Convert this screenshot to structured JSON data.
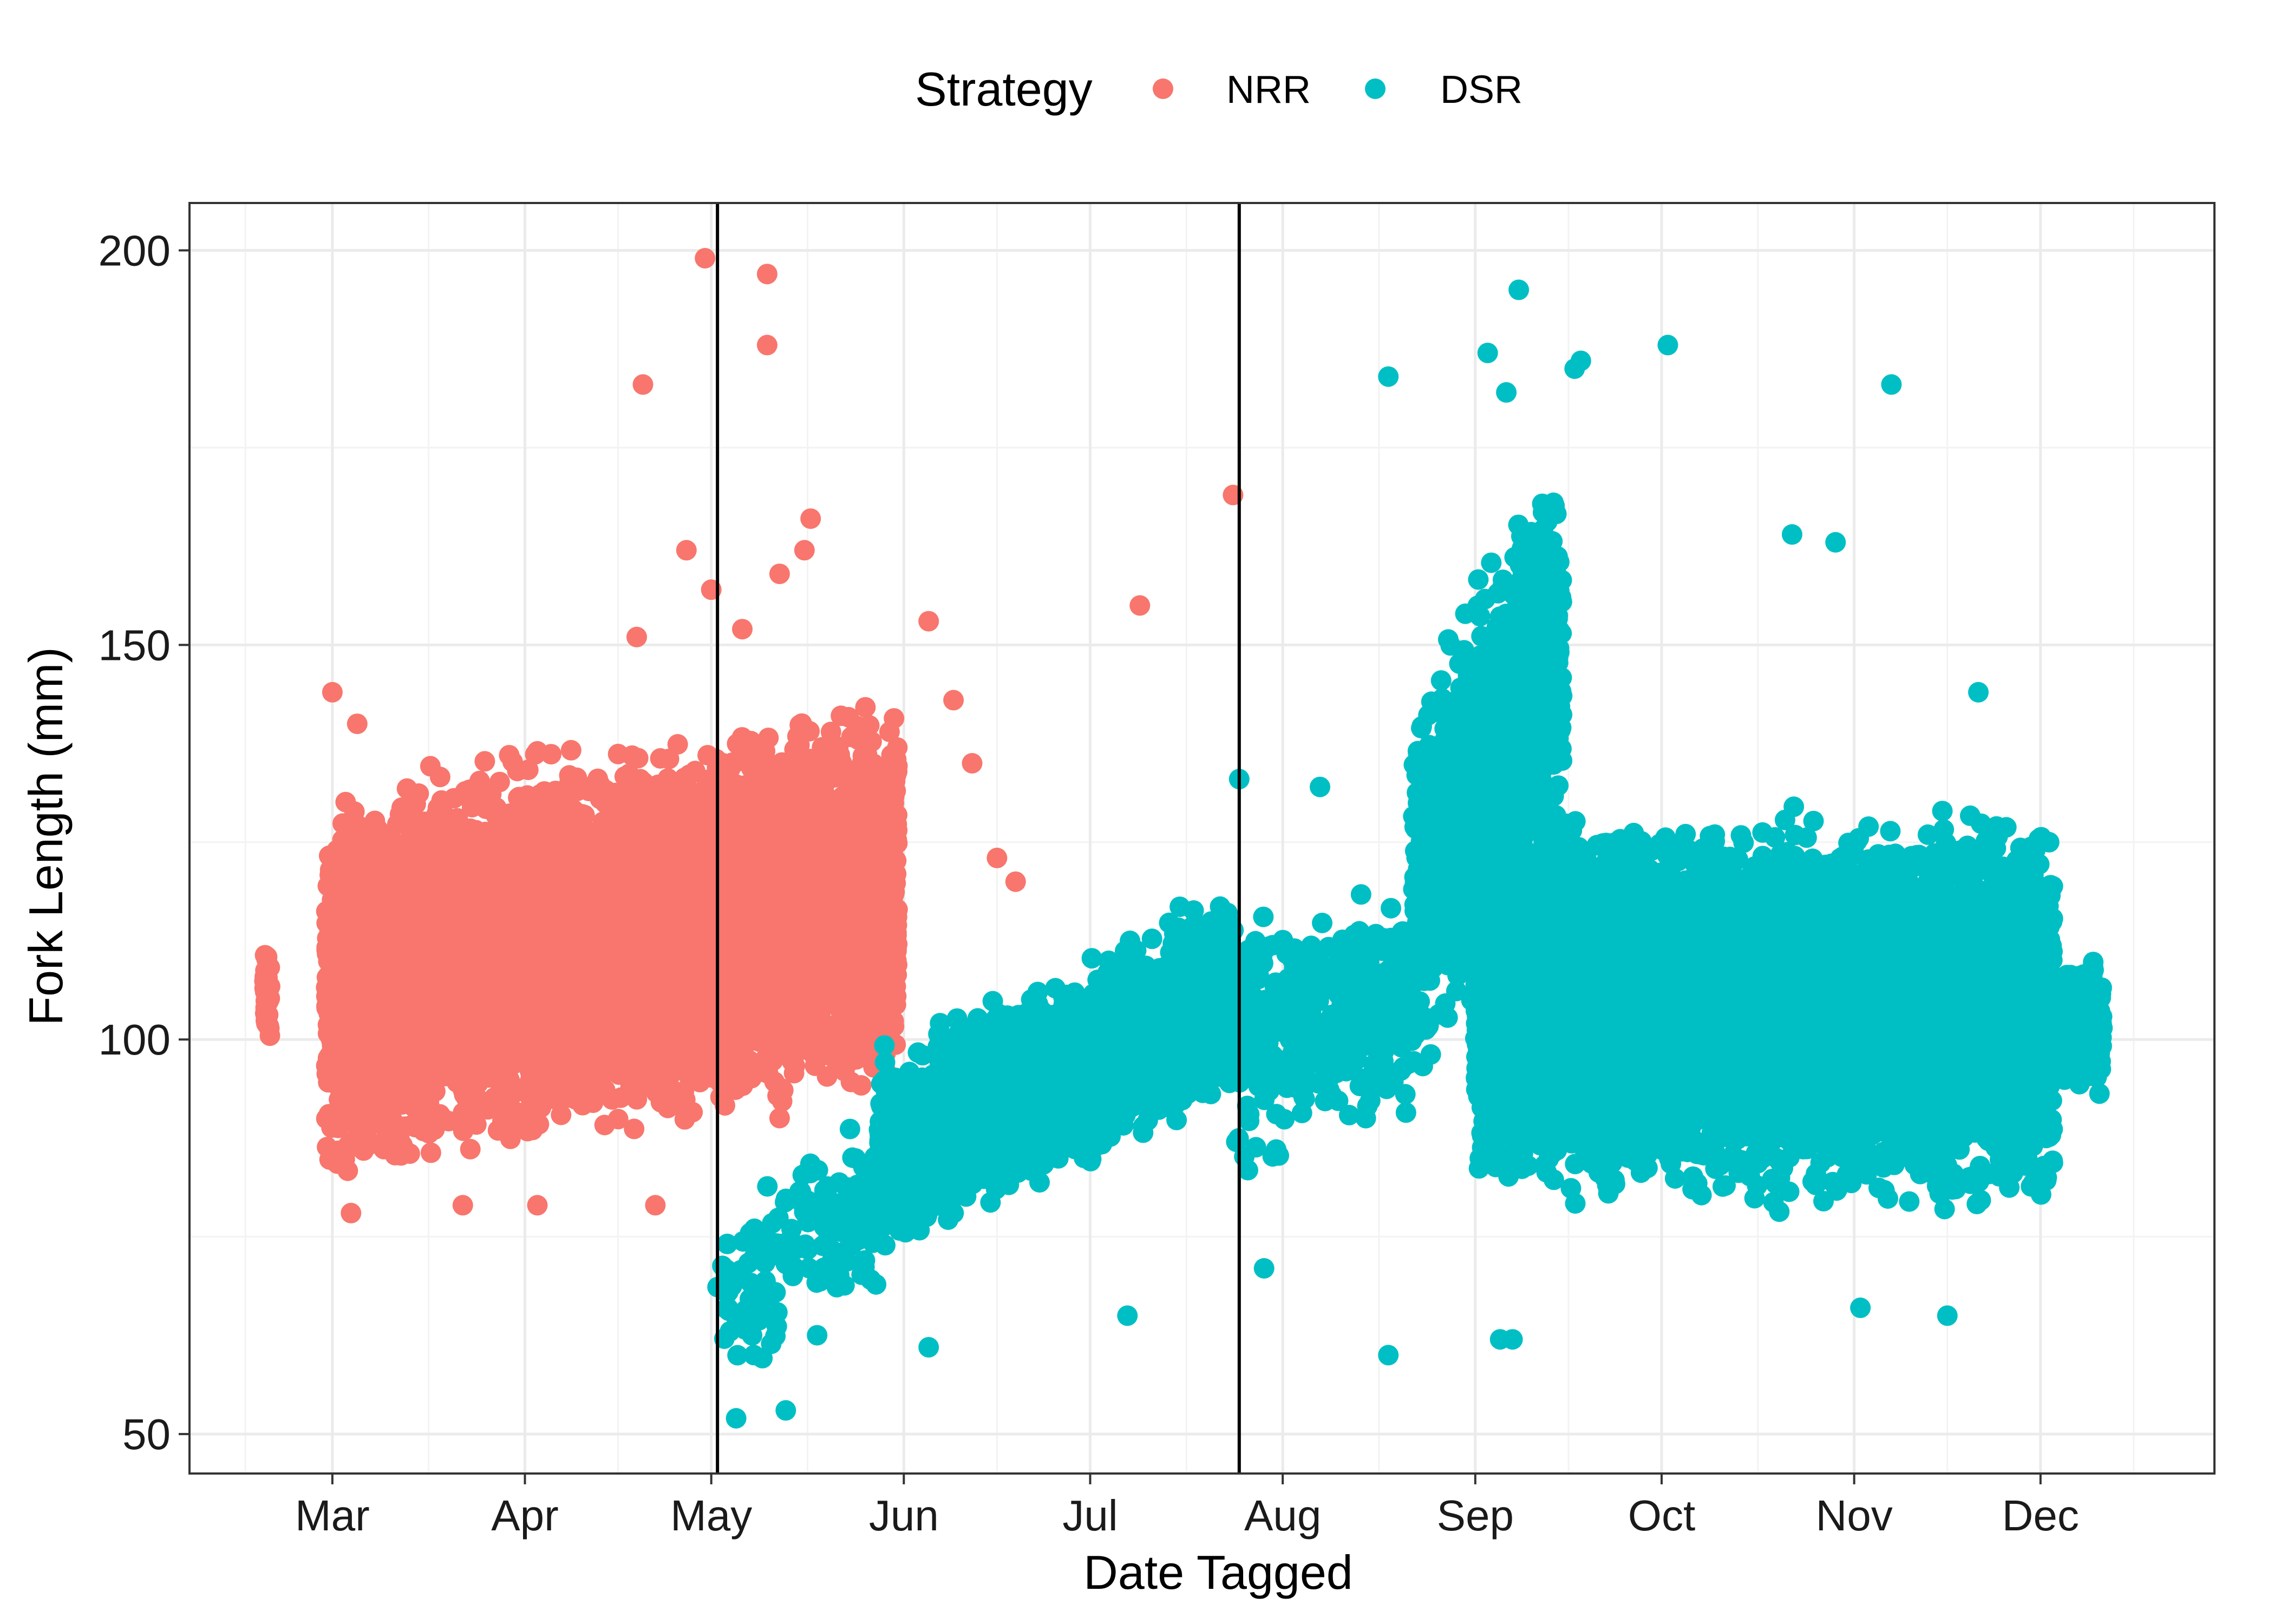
{
  "chart_data": {
    "type": "scatter",
    "xlabel": "Date Tagged",
    "ylabel": "Fork Length (mm)",
    "x_tick_labels": [
      "Mar",
      "Apr",
      "May",
      "Jun",
      "Jul",
      "Aug",
      "Sep",
      "Oct",
      "Nov",
      "Dec"
    ],
    "x_tick_dates": [
      "Mar 1",
      "Apr 1",
      "May 1",
      "Jun 1",
      "Jul 1",
      "Aug 1",
      "Sep 1",
      "Oct 1",
      "Nov 1",
      "Dec 1"
    ],
    "xlim": [
      "Feb 6",
      "Dec 29"
    ],
    "y_ticks": [
      50,
      100,
      150,
      200
    ],
    "ylim": [
      45,
      206
    ],
    "grid": true,
    "legend": {
      "title": "Strategy",
      "position": "top",
      "entries": [
        {
          "name": "NRR",
          "color": "#F8766D"
        },
        {
          "name": "DSR",
          "color": "#00BFC4"
        }
      ]
    },
    "vertical_lines": [
      "May 2",
      "Jul 25"
    ],
    "series": [
      {
        "name": "NRR",
        "color": "#F8766D",
        "clusters": [
          {
            "x_start": "Feb 18",
            "x_end": "Feb 19",
            "y_center": 105,
            "y_spread": 9,
            "count": 30
          },
          {
            "x_start": "Feb 28",
            "x_end": "May 31",
            "y_start": 107,
            "y_end": 118,
            "y_spread": 27,
            "count": 9000
          }
        ],
        "points": [
          [
            "Apr 20",
            183
          ],
          [
            "Apr 27",
            162
          ],
          [
            "Apr 19",
            151
          ],
          [
            "May 1",
            157
          ],
          [
            "Apr 30",
            199
          ],
          [
            "May 10",
            197
          ],
          [
            "May 10",
            188
          ],
          [
            "May 17",
            166
          ],
          [
            "May 16",
            162
          ],
          [
            "May 12",
            159
          ],
          [
            "May 6",
            152
          ],
          [
            "Mar 1",
            144
          ],
          [
            "Mar 5",
            140
          ],
          [
            "Jul 24",
            169
          ],
          [
            "Jul 9",
            155
          ],
          [
            "Jun 9",
            143
          ],
          [
            "Jun 12",
            135
          ],
          [
            "Jun 16",
            123
          ],
          [
            "Jun 19",
            120
          ],
          [
            "Apr 3",
            79
          ],
          [
            "Apr 22",
            79
          ],
          [
            "Mar 4",
            78
          ],
          [
            "Mar 22",
            79
          ],
          [
            "Jun 5",
            153
          ]
        ]
      },
      {
        "name": "DSR",
        "color": "#00BFC4",
        "clusters": [
          {
            "x_start": "May 2",
            "x_end": "May 28",
            "y_start": 68,
            "y_end": 78,
            "y_spread": 14,
            "count": 160
          },
          {
            "x_start": "May 28",
            "x_end": "Jul 24",
            "y_start": 85,
            "y_end": 106,
            "y_spread": 15,
            "count": 2200
          },
          {
            "x_start": "Jul 24",
            "x_end": "Aug 22",
            "y_start": 100,
            "y_end": 104,
            "y_spread": 18,
            "count": 380
          },
          {
            "x_start": "Aug 22",
            "x_end": "Sep 15",
            "y_start": 118,
            "y_end": 150,
            "y_spread": 30,
            "count": 1100
          },
          {
            "x_start": "Sep 1",
            "x_end": "Dec 3",
            "y_start": 105,
            "y_end": 103,
            "y_spread": 27,
            "count": 8500
          },
          {
            "x_start": "Dec 3",
            "x_end": "Dec 11",
            "y_center": 102,
            "y_spread": 10,
            "count": 250
          }
        ],
        "points": [
          [
            "Sep 8",
            195
          ],
          [
            "Oct 2",
            188
          ],
          [
            "Nov 7",
            183
          ],
          [
            "Sep 18",
            186
          ],
          [
            "Sep 17",
            185
          ],
          [
            "Sep 3",
            187
          ],
          [
            "Aug 18",
            184
          ],
          [
            "Sep 6",
            182
          ],
          [
            "Aug 18",
            60
          ],
          [
            "Sep 5",
            62
          ],
          [
            "Sep 7",
            62
          ],
          [
            "May 5",
            52
          ],
          [
            "May 13",
            53
          ],
          [
            "May 4",
            63
          ],
          [
            "Nov 16",
            65
          ],
          [
            "Nov 2",
            66
          ],
          [
            "Oct 22",
            164
          ],
          [
            "Oct 29",
            163
          ],
          [
            "Nov 21",
            144
          ],
          [
            "Jul 29",
            71
          ],
          [
            "Jul 7",
            65
          ],
          [
            "Jun 5",
            61
          ],
          [
            "Jul 25",
            133
          ],
          [
            "Aug 7",
            132
          ]
        ]
      }
    ]
  }
}
